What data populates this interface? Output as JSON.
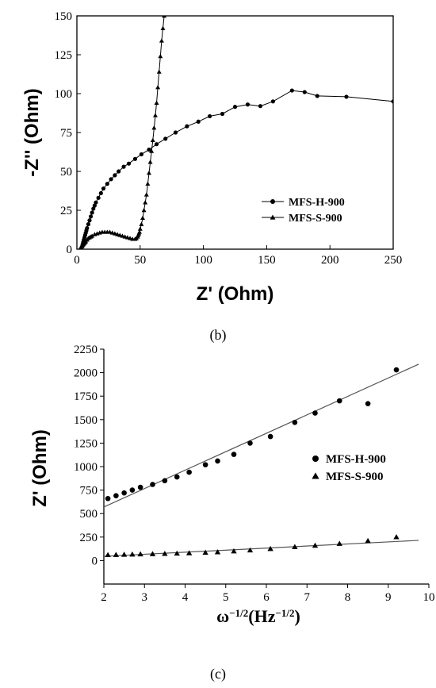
{
  "chart_data": [
    {
      "type": "line",
      "panel_label": "(b)",
      "xlabel": "Z' (Ohm)",
      "ylabel": "-Z'' (Ohm)",
      "xlim": [
        0,
        250
      ],
      "ylim": [
        0,
        150
      ],
      "xticks": [
        0,
        50,
        100,
        150,
        200,
        250
      ],
      "yticks": [
        0,
        25,
        50,
        75,
        100,
        125,
        150
      ],
      "legend_position": "lower-right",
      "series": [
        {
          "name": "MFS-H-900",
          "marker": "circle",
          "x": [
            3.5,
            4,
            4.5,
            5,
            5.5,
            6,
            6.5,
            7,
            7.5,
            8,
            9,
            10,
            11,
            12,
            13,
            14,
            15,
            17,
            19,
            21,
            24,
            27,
            30,
            33,
            37,
            41,
            46,
            51,
            57,
            63,
            70,
            78,
            87,
            96,
            105,
            115,
            125,
            135,
            145,
            155,
            170,
            180,
            190,
            213,
            250
          ],
          "y": [
            0,
            1.5,
            3,
            4.5,
            6,
            7.5,
            9,
            10.5,
            12,
            13.5,
            16,
            18.5,
            21,
            23.5,
            26,
            28,
            30,
            33,
            36,
            39,
            42,
            45,
            47.5,
            50,
            53,
            55,
            58,
            61,
            64,
            67.5,
            71,
            75,
            79,
            82,
            85.5,
            87,
            91.5,
            93,
            92,
            95,
            102,
            101,
            98.5,
            98,
            95
          ]
        },
        {
          "name": "MFS-S-900",
          "marker": "triangle",
          "x": [
            2.5,
            3,
            3.5,
            4,
            4.5,
            5,
            5.5,
            6,
            6.5,
            7,
            8,
            9,
            10,
            11,
            12,
            14,
            16,
            18,
            20,
            22,
            24,
            26,
            28,
            30,
            32,
            34,
            36,
            38,
            40,
            42,
            44,
            46,
            47,
            48,
            48.5,
            49,
            49.5,
            50,
            51,
            52,
            53,
            54,
            55,
            56,
            57,
            58,
            59,
            60,
            61,
            62,
            63,
            64,
            65,
            66,
            67,
            68,
            69
          ],
          "y": [
            0,
            1,
            1.5,
            2,
            2.5,
            3,
            3.5,
            4,
            4.5,
            5,
            6,
            7,
            7.5,
            8,
            8.5,
            9.5,
            10,
            10.5,
            11,
            11,
            11,
            11,
            10.5,
            10,
            9.5,
            9,
            8.5,
            8,
            7.5,
            7,
            6.5,
            6.5,
            7,
            8,
            9,
            10,
            11,
            13,
            16,
            20,
            25,
            30,
            35,
            42,
            49,
            56,
            63,
            70,
            78,
            86,
            94,
            104,
            114,
            124,
            134,
            142,
            150
          ]
        }
      ]
    },
    {
      "type": "scatter",
      "panel_label": "(c)",
      "xlabel": "ω^−1/2(Hz^−1/2)",
      "ylabel": "Z' (Ohm)",
      "xlim": [
        2,
        10
      ],
      "ylim": [
        -250,
        2250
      ],
      "xticks": [
        2,
        3,
        4,
        5,
        6,
        7,
        8,
        9,
        10
      ],
      "yticks": [
        0,
        250,
        500,
        750,
        1000,
        1250,
        1500,
        1750,
        2000,
        2250
      ],
      "legend_position": "right",
      "series": [
        {
          "name": "MFS-H-900",
          "marker": "circle",
          "x": [
            2.1,
            2.3,
            2.5,
            2.7,
            2.9,
            3.2,
            3.5,
            3.8,
            4.1,
            4.5,
            4.8,
            5.2,
            5.6,
            6.1,
            6.7,
            7.2,
            7.8,
            8.5,
            9.2
          ],
          "y": [
            660,
            690,
            720,
            750,
            780,
            810,
            850,
            890,
            940,
            1020,
            1060,
            1130,
            1250,
            1320,
            1470,
            1570,
            1700,
            1670,
            2030
          ],
          "fit": {
            "x": [
              2,
              9.75
            ],
            "y": [
              570,
              2090
            ]
          }
        },
        {
          "name": "MFS-S-900",
          "marker": "triangle",
          "x": [
            2.1,
            2.3,
            2.5,
            2.7,
            2.9,
            3.2,
            3.5,
            3.8,
            4.1,
            4.5,
            4.8,
            5.2,
            5.6,
            6.1,
            6.7,
            7.2,
            7.8,
            8.5,
            9.2
          ],
          "y": [
            60,
            62,
            64,
            66,
            68,
            70,
            73,
            76,
            80,
            85,
            90,
            100,
            110,
            125,
            145,
            160,
            180,
            210,
            250
          ],
          "fit": {
            "x": [
              2,
              9.75
            ],
            "y": [
              45,
              215
            ]
          }
        }
      ]
    }
  ]
}
